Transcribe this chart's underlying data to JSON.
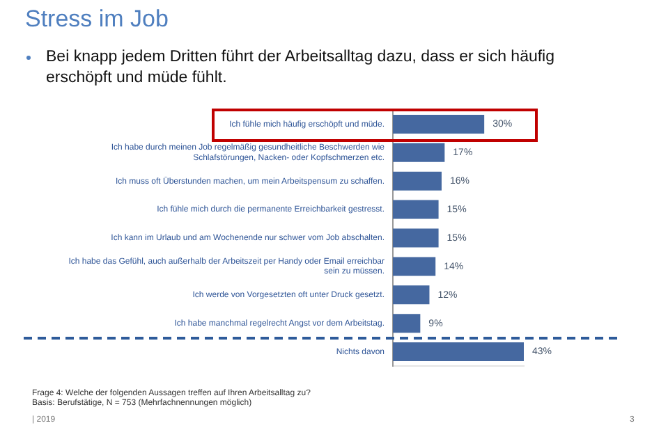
{
  "chart_data": {
    "type": "bar",
    "orientation": "horizontal",
    "title": "Stress im Job",
    "subtitle": "Bei knapp jedem Dritten führt der Arbeitsalltag dazu, dass er sich häufig erschöpft und müde fühlt.",
    "categories": [
      "Ich fühle mich häufig erschöpft und müde.",
      "Ich habe durch meinen Job regelmäßig gesundheitliche Beschwerden wie Schlafstörungen, Nacken- oder Kopfschmerzen etc.",
      "Ich muss oft Überstunden machen, um mein Arbeitspensum zu schaffen.",
      "Ich fühle mich durch die permanente Erreichbarkeit gestresst.",
      "Ich kann im Urlaub und am Wochenende nur schwer vom Job abschalten.",
      "Ich habe das Gefühl, auch außerhalb der Arbeitszeit per Handy oder Email erreichbar sein zu müssen.",
      "Ich werde von Vorgesetzten oft unter Druck gesetzt.",
      "Ich habe manchmal regelrecht Angst vor dem Arbeitstag.",
      "Nichts davon"
    ],
    "values": [
      30,
      17,
      16,
      15,
      15,
      14,
      12,
      9,
      43
    ],
    "value_labels": [
      "30%",
      "17%",
      "16%",
      "15%",
      "15%",
      "14%",
      "12%",
      "9%",
      "43%"
    ],
    "color": "#4568a0",
    "grid": false,
    "legend": false,
    "annotations": [
      "Frage 4: Welche der folgenden Aussagen treffen auf Ihren Arbeitsalltag zu?",
      "Basis: Berufstätige, N = 753 (Mehrfachnennungen möglich)",
      "| 2019",
      "3"
    ]
  }
}
